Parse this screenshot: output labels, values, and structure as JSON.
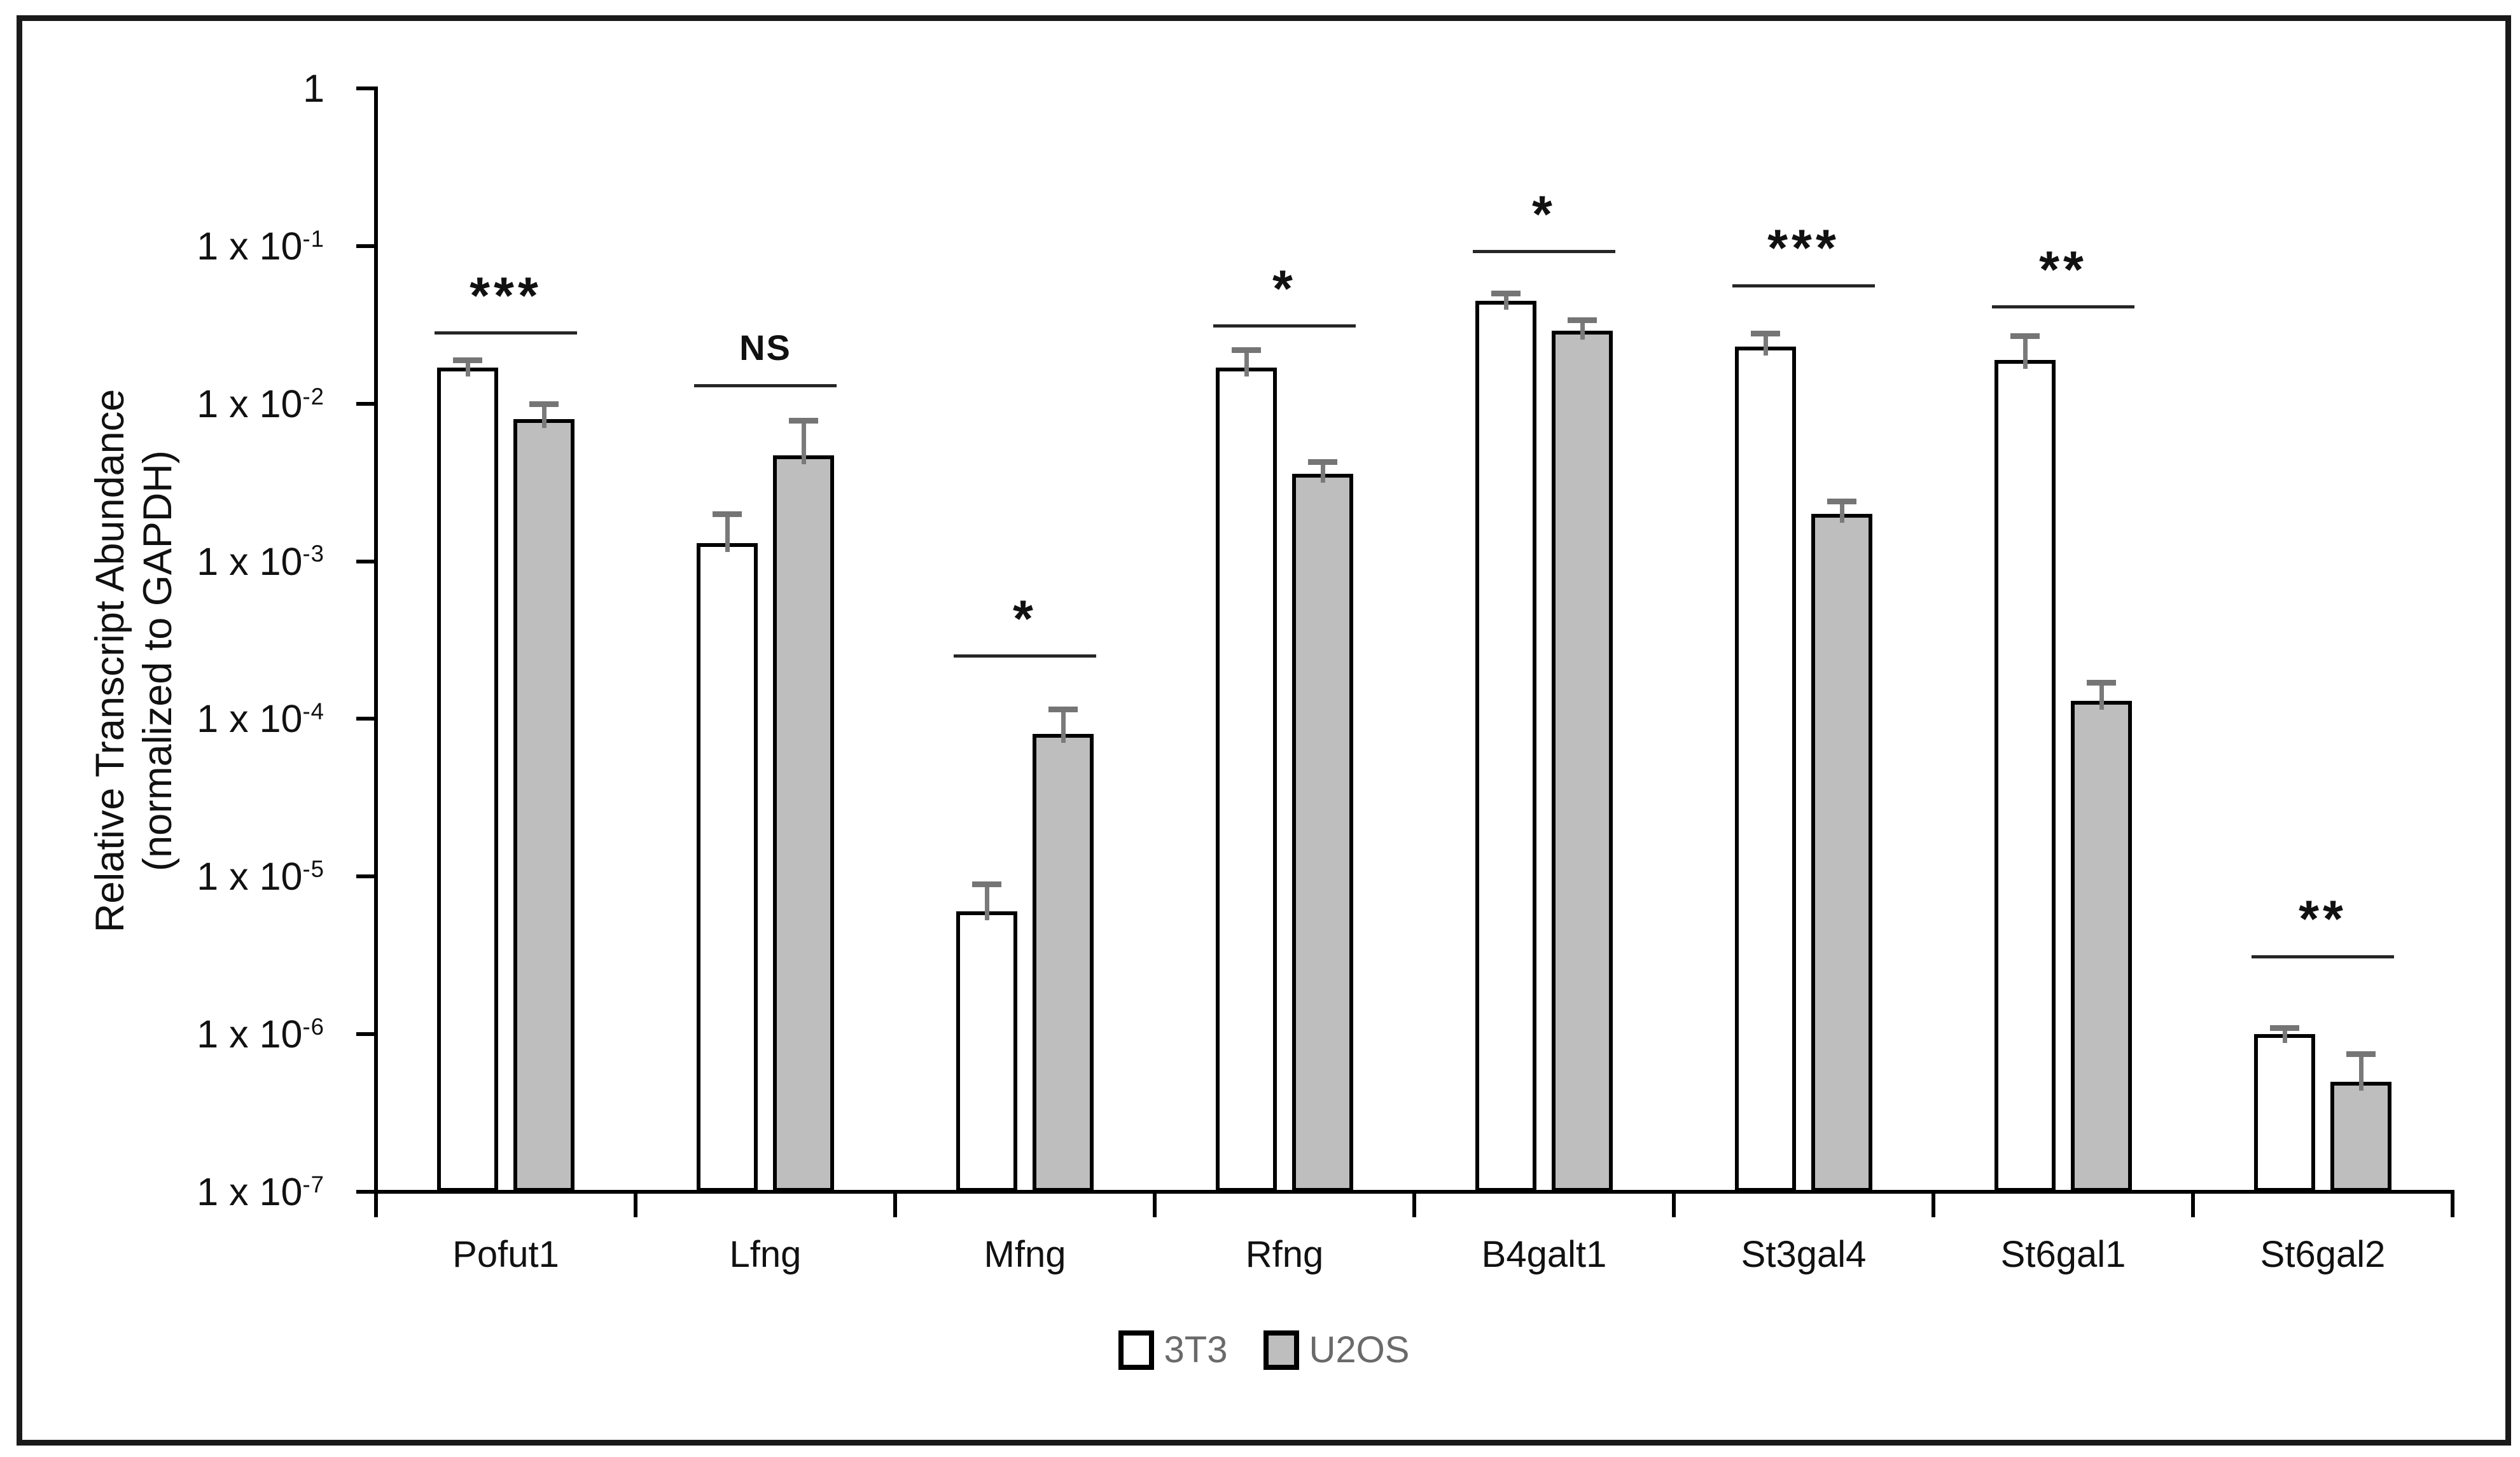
{
  "chart_data": {
    "type": "bar",
    "scale": "log",
    "ylabel_line1": "Relative Transcript Abundance",
    "ylabel_line2": "(normalized to GAPDH)",
    "xlabel": "",
    "ylim": [
      1e-07,
      1
    ],
    "grid": false,
    "legend_position": "bottom",
    "yticks": [
      {
        "base": "1",
        "exp": "",
        "value": 1
      },
      {
        "base": "1 x 10",
        "exp": "-1",
        "value": 0.1
      },
      {
        "base": "1 x 10",
        "exp": "-2",
        "value": 0.01
      },
      {
        "base": "1 x 10",
        "exp": "-3",
        "value": 0.001
      },
      {
        "base": "1 x 10",
        "exp": "-4",
        "value": 0.0001
      },
      {
        "base": "1 x 10",
        "exp": "-5",
        "value": 1e-05
      },
      {
        "base": "1 x 10",
        "exp": "-6",
        "value": 1e-06
      },
      {
        "base": "1 x 10",
        "exp": "-7",
        "value": 1e-07
      }
    ],
    "categories": [
      "Pofut1",
      "Lfng",
      "Mfng",
      "Rfng",
      "B4galt1",
      "St3gal4",
      "St6gal1",
      "St6gal2"
    ],
    "series": [
      {
        "name": "3T3",
        "fill": "#ffffff",
        "values": [
          0.017,
          0.0013,
          6e-06,
          0.017,
          0.045,
          0.023,
          0.019,
          1e-06
        ],
        "error_tops": [
          0.019,
          0.002,
          9e-06,
          0.022,
          0.05,
          0.028,
          0.027,
          1.1e-06
        ]
      },
      {
        "name": "U2OS",
        "fill": "#bebebe",
        "values": [
          0.008,
          0.0047,
          8e-05,
          0.0036,
          0.029,
          0.002,
          0.00013,
          5e-07
        ],
        "error_tops": [
          0.01,
          0.0078,
          0.000115,
          0.0043,
          0.034,
          0.0024,
          0.00017,
          7.5e-07
        ]
      }
    ],
    "significance": [
      {
        "category": "Pofut1",
        "label": "***",
        "line_value": 0.028
      },
      {
        "category": "Lfng",
        "label": "NS",
        "line_value": 0.013
      },
      {
        "category": "Mfng",
        "label": "*",
        "line_value": 0.00025
      },
      {
        "category": "Rfng",
        "label": "*",
        "line_value": 0.031
      },
      {
        "category": "B4galt1",
        "label": "*",
        "line_value": 0.092
      },
      {
        "category": "St3gal4",
        "label": "***",
        "line_value": 0.056
      },
      {
        "category": "St6gal1",
        "label": "**",
        "line_value": 0.041
      },
      {
        "category": "St6gal2",
        "label": "**",
        "line_value": 3.1e-06
      }
    ],
    "colors": {
      "bar_border": "#000000",
      "error_bar": "#7a7a7a",
      "sig_line": "#262626",
      "axis": "#000000",
      "legend_text": "#6a6a6a"
    }
  }
}
